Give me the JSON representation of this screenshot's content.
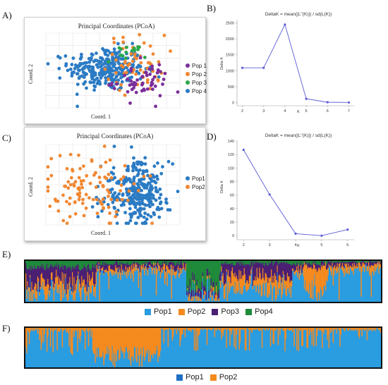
{
  "panel_letters": {
    "A": "A)",
    "B": "B)",
    "C": "C)",
    "D": "D)",
    "E": "E)",
    "F": "F)"
  },
  "colors": {
    "pop_blue": "#2b7bc4",
    "pop_orange": "#f08833",
    "pop_purple": "#7b2e9a",
    "pop_green": "#2aa84a",
    "line": "#5b5bd6",
    "struct_blue": "#2a9ce0",
    "struct_orange": "#f58a1f",
    "struct_purple": "#4b1f72",
    "struct_green": "#1f8a3a"
  },
  "chart_data": [
    {
      "id": "A",
      "type": "scatter",
      "title": "Principal Coordinates (PCoA)",
      "xlabel": "Coord. 1",
      "ylabel": "Coord. 2",
      "legend": [
        "Pop 1",
        "Pop 2",
        "Pop 3",
        "Pop 4"
      ],
      "legend_placement": "right",
      "grid": true,
      "series": [
        {
          "name": "Pop 4",
          "color": "#2b7bc4",
          "n": 300,
          "cx": -0.15,
          "cy": 0.05,
          "sx": 0.45,
          "sy": 0.35
        },
        {
          "name": "Pop 2",
          "color": "#f08833",
          "n": 60,
          "cx": 0.55,
          "cy": 0.25,
          "sx": 0.35,
          "sy": 0.45
        },
        {
          "name": "Pop 3",
          "color": "#2aa84a",
          "n": 15,
          "cx": 0.3,
          "cy": 0.55,
          "sx": 0.25,
          "sy": 0.15
        },
        {
          "name": "Pop 1",
          "color": "#7b2e9a",
          "n": 55,
          "cx": 0.7,
          "cy": -0.35,
          "sx": 0.35,
          "sy": 0.3
        }
      ],
      "xlim": [
        -1.6,
        1.6
      ],
      "ylim": [
        -1.2,
        1.2
      ]
    },
    {
      "id": "B",
      "type": "line",
      "title": "DeltaK = mean(|L''(K)|) / sd(L(K))",
      "xlabel": "K",
      "ylabel": "Delta K",
      "x": [
        2,
        3,
        4,
        5,
        6,
        7
      ],
      "y": [
        1090,
        1090,
        2450,
        120,
        10,
        5
      ],
      "xlim": [
        1.75,
        7.25
      ],
      "ylim": [
        -100,
        2600
      ],
      "yticks": [
        0,
        500,
        1000,
        1500,
        2000,
        2500
      ]
    },
    {
      "id": "C",
      "type": "scatter",
      "title": "Principal Coordinates (PCoA)",
      "xlabel": "Coord. 1",
      "ylabel": "Coord. 2",
      "legend": [
        "Pop1",
        "Pop2"
      ],
      "legend_placement": "right",
      "grid": true,
      "series": [
        {
          "name": "Pop1",
          "color": "#2b7bc4",
          "n": 300,
          "cx": 0.55,
          "cy": -0.25,
          "sx": 0.4,
          "sy": 0.45
        },
        {
          "name": "Pop2",
          "color": "#f08833",
          "n": 110,
          "cx": -0.55,
          "cy": -0.1,
          "sx": 0.55,
          "sy": 0.55
        }
      ],
      "xlim": [
        -1.6,
        1.6
      ],
      "ylim": [
        -1.2,
        1.2
      ]
    },
    {
      "id": "D",
      "type": "line",
      "title": "DeltaK = mean(|L''(K)|) / sd(L(K))",
      "xlabel": "K",
      "ylabel": "Delta K",
      "x": [
        2,
        3,
        4,
        5,
        6
      ],
      "y": [
        127,
        61,
        3,
        0,
        9
      ],
      "xlim": [
        1.75,
        6.25
      ],
      "ylim": [
        -6,
        140
      ],
      "yticks": [
        0,
        20,
        40,
        60,
        80,
        100,
        120,
        140
      ]
    },
    {
      "id": "E",
      "type": "bar",
      "stacked": true,
      "legend": [
        "Pop1",
        "Pop2",
        "Pop3",
        "Pop4"
      ],
      "legend_placement": "bottom"
    },
    {
      "id": "F",
      "type": "bar",
      "stacked": true,
      "legend": [
        "Pop1",
        "Pop2"
      ],
      "legend_placement": "bottom"
    }
  ]
}
